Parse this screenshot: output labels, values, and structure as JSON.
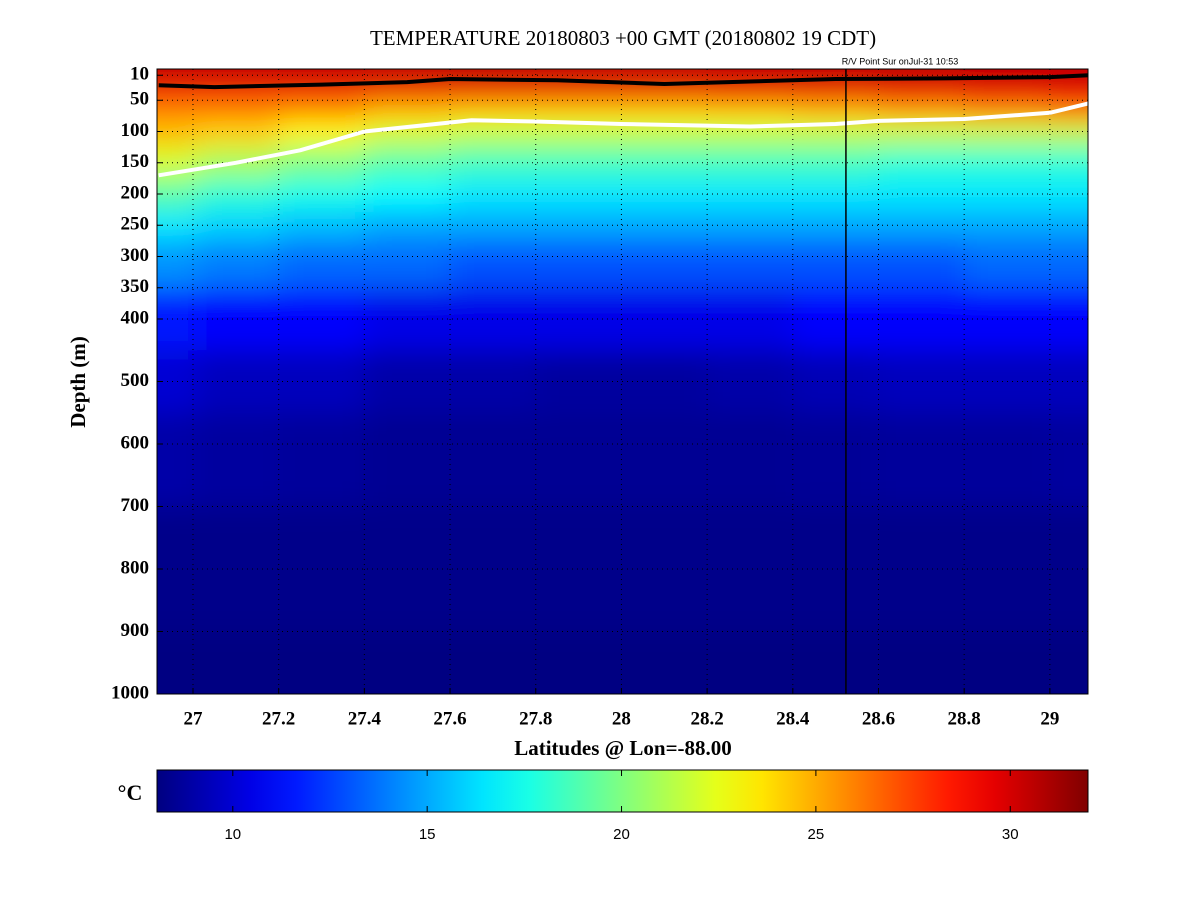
{
  "chart_data": {
    "type": "heatmap",
    "title": "TEMPERATURE 20180803 +00 GMT (20180802 19 CDT)",
    "annotation": "R/V Point Sur onJul-31 10:53",
    "x_label": "Latitudes @ Lon=-88.00",
    "y_label": "Depth (m)",
    "colorbar_label": "°C",
    "xlim": [
      26.916,
      29.089
    ],
    "xticks": [
      27,
      27.2,
      27.4,
      27.6,
      27.8,
      28,
      28.2,
      28.4,
      28.6,
      28.8,
      29
    ],
    "ylim": [
      0,
      1000
    ],
    "y_inverted": true,
    "yticks": [
      10,
      50,
      100,
      150,
      200,
      250,
      300,
      350,
      400,
      500,
      600,
      700,
      800,
      900,
      1000
    ],
    "grid": true,
    "clim": [
      8.05,
      32
    ],
    "cticks": [
      10,
      15,
      20,
      25,
      30
    ],
    "colormap": "jet",
    "x": [
      26.92,
      27.1,
      27.3,
      27.5,
      27.7,
      27.9,
      28.1,
      28.3,
      28.5,
      28.7,
      28.9,
      29.09
    ],
    "y": [
      0,
      10,
      25,
      50,
      75,
      100,
      150,
      200,
      250,
      300,
      400,
      500,
      600,
      800,
      1000
    ],
    "values": [
      [
        30.5,
        30.5,
        30.5,
        30.5,
        30.5,
        30.5,
        30.5,
        30.5,
        30.5,
        30.5,
        30.5,
        30.5
      ],
      [
        30.3,
        30.3,
        30.3,
        30.3,
        30.3,
        30.3,
        30.3,
        30.3,
        30.3,
        30.3,
        30.3,
        30.3
      ],
      [
        29.5,
        29.5,
        29.5,
        29.6,
        29.7,
        29.7,
        29.7,
        29.7,
        29.8,
        29.9,
        30,
        30
      ],
      [
        27,
        27,
        27,
        26.5,
        26.5,
        26.5,
        26.5,
        27,
        27,
        27.5,
        28,
        28.5
      ],
      [
        25.5,
        25.5,
        25,
        24,
        23.5,
        23.5,
        23.5,
        23.5,
        24,
        24.5,
        25,
        25.5
      ],
      [
        24.5,
        24,
        23,
        22,
        21.5,
        21.5,
        21.5,
        21.5,
        21.5,
        21.5,
        21.5,
        21.5
      ],
      [
        22,
        21,
        20,
        19,
        18.5,
        18.5,
        18.5,
        18.5,
        18.5,
        18,
        18,
        18
      ],
      [
        19,
        18,
        17.5,
        17,
        16.5,
        16.5,
        16.5,
        16.5,
        16.5,
        16.5,
        16.5,
        16.5
      ],
      [
        16.5,
        16,
        15.5,
        15,
        15,
        15,
        15,
        15,
        15,
        15,
        15,
        15
      ],
      [
        14.5,
        14,
        13.5,
        13.5,
        13,
        13,
        13,
        13,
        13,
        13,
        13.5,
        13.5
      ],
      [
        11.5,
        11,
        11,
        10.5,
        10.5,
        10.5,
        10.5,
        10.5,
        11,
        11,
        11,
        11
      ],
      [
        10,
        9.5,
        9.5,
        9,
        9,
        8.8,
        8.8,
        9,
        9.3,
        9.5,
        9.5,
        9.5
      ],
      [
        9,
        8.8,
        8.7,
        8.5,
        8.5,
        8.5,
        8.5,
        8.5,
        8.6,
        8.7,
        8.7,
        8.8
      ],
      [
        8.3,
        8.3,
        8.3,
        8.3,
        8.3,
        8.3,
        8.3,
        8.3,
        8.3,
        8.3,
        8.3,
        8.3
      ],
      [
        8.1,
        8.1,
        8.1,
        8.1,
        8.1,
        8.1,
        8.1,
        8.1,
        8.1,
        8.1,
        8.1,
        8.1
      ]
    ],
    "contours": [
      {
        "color": "#000000",
        "x": [
          26.92,
          27.05,
          27.3,
          27.5,
          27.6,
          27.85,
          28.1,
          28.3,
          28.5,
          28.75,
          29.0,
          29.09
        ],
        "y": [
          26,
          29,
          25,
          21,
          16,
          18,
          24,
          20,
          16,
          15,
          13,
          10
        ]
      },
      {
        "color": "#ffffff",
        "x": [
          26.92,
          27.1,
          27.25,
          27.4,
          27.65,
          27.8,
          28.0,
          28.3,
          28.5,
          28.6,
          28.8,
          29.0,
          29.09
        ],
        "y": [
          170,
          150,
          130,
          100,
          82,
          84,
          88,
          92,
          88,
          83,
          80,
          70,
          55
        ]
      }
    ],
    "marker_line": {
      "x": 28.524,
      "color": "#000000"
    }
  }
}
